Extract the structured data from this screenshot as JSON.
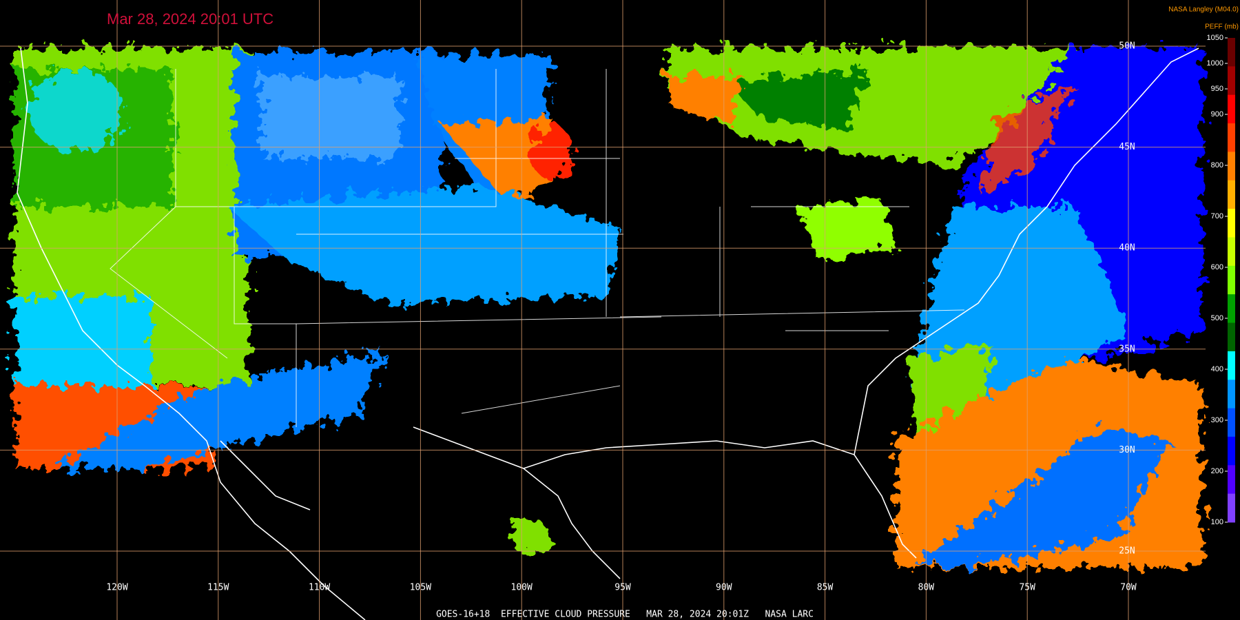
{
  "header": {
    "timestamp": "Mar 28, 2024 20:01 UTC",
    "source": "NASA Langley (M04.0)"
  },
  "colorbar": {
    "title": "PEFF (mb)",
    "ticks": [
      1050,
      1000,
      950,
      900,
      800,
      700,
      600,
      500,
      400,
      300,
      200,
      100
    ],
    "colors": [
      "#6a0000",
      "#a00000",
      "#ff0000",
      "#ff4000",
      "#ff8000",
      "#ffb000",
      "#ffff00",
      "#c8ff00",
      "#80ff00",
      "#00a000",
      "#006400",
      "#00ffff",
      "#0096ff",
      "#0050ff",
      "#0000ff",
      "#5000ff",
      "#8040ff"
    ]
  },
  "map": {
    "longitude_labels": [
      "120W",
      "115W",
      "110W",
      "105W",
      "100W",
      "95W",
      "90W",
      "85W",
      "80W",
      "75W",
      "70W"
    ],
    "latitude_labels": [
      "50N",
      "45N",
      "40N",
      "35N",
      "30N",
      "25N"
    ]
  },
  "footer": {
    "caption": "GOES-16+18  EFFECTIVE CLOUD PRESSURE   MAR 28, 2024 20:01Z   NASA LARC"
  }
}
